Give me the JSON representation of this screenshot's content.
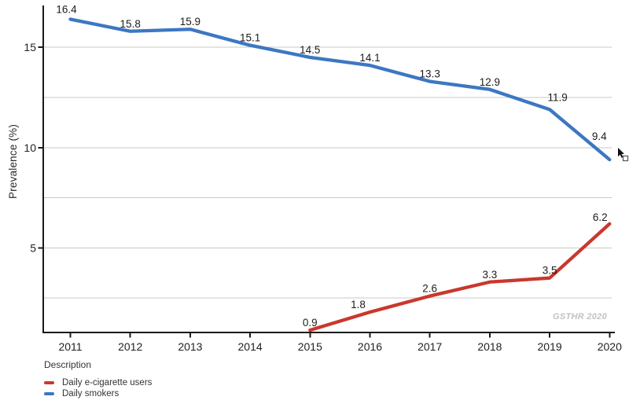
{
  "chart_data": {
    "type": "line",
    "title": "",
    "xlabel": "",
    "ylabel": "Prevalence (%)",
    "x_categories": [
      2011,
      2012,
      2013,
      2014,
      2015,
      2016,
      2017,
      2018,
      2019,
      2020
    ],
    "series": [
      {
        "name": "Daily e-cigarette users",
        "color": "#c9382d",
        "x": [
          2015,
          2016,
          2017,
          2018,
          2019,
          2020
        ],
        "values": [
          0.9,
          1.8,
          2.6,
          3.3,
          3.5,
          6.2
        ]
      },
      {
        "name": "Daily smokers",
        "color": "#3c77c2",
        "x": [
          2011,
          2012,
          2013,
          2014,
          2015,
          2016,
          2017,
          2018,
          2019,
          2020
        ],
        "values": [
          16.4,
          15.8,
          15.9,
          15.1,
          14.5,
          14.1,
          13.3,
          12.9,
          11.9,
          9.4
        ]
      }
    ],
    "y_ticks": [
      5,
      10,
      15
    ],
    "gridlines": [
      2.5,
      5,
      7.5,
      10,
      12.5,
      15
    ],
    "ylim": [
      0.8,
      17.1
    ],
    "grid": true,
    "data_labels": true,
    "legend": {
      "title": "Description",
      "position": "bottom-left",
      "items": [
        "Daily e-cigarette users",
        "Daily smokers"
      ]
    },
    "watermark": "GSTHR 2020",
    "colors": {
      "axis": "#1a1a1a",
      "gridline": "#c8c8c8",
      "tick_label": "#222222",
      "data_label": "#1c1c1c"
    }
  }
}
